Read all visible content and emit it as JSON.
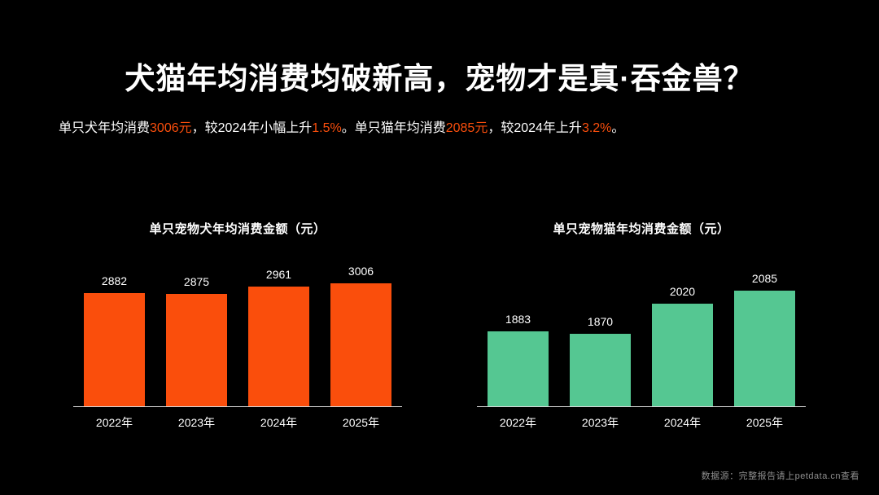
{
  "title": "犬猫年均消费均破新高，宠物才是真·吞金兽？",
  "subtitle": {
    "segments": [
      {
        "text": "单只犬年均消费",
        "highlight": false
      },
      {
        "text": "3006元",
        "highlight": true
      },
      {
        "text": "，较2024年小幅上升",
        "highlight": false
      },
      {
        "text": "1.5%",
        "highlight": true
      },
      {
        "text": "。单只猫年均消费",
        "highlight": false
      },
      {
        "text": "2085元",
        "highlight": true
      },
      {
        "text": "，较2024年上升",
        "highlight": false
      },
      {
        "text": "3.2%",
        "highlight": true
      },
      {
        "text": "。",
        "highlight": false
      }
    ]
  },
  "colors": {
    "background": "#000000",
    "text": "#ffffff",
    "highlight": "#fa4e0c",
    "dog_bar": "#fa4e0c",
    "cat_bar": "#55c792",
    "axis_line": "#d9d9d9",
    "source_text": "#8f8f8f"
  },
  "chart_data": [
    {
      "type": "bar",
      "title": "单只宠物犬年均消费金额（元）",
      "categories": [
        "2022年",
        "2023年",
        "2024年",
        "2025年"
      ],
      "values": [
        2882,
        2875,
        2961,
        3006
      ],
      "bar_color": "#fa4e0c",
      "xlabel": "",
      "ylabel": "",
      "ylim": [
        1440,
        3100
      ],
      "grid": false,
      "legend": "none",
      "value_labels": true
    },
    {
      "type": "bar",
      "title": "单只宠物猫年均消费金额（元）",
      "categories": [
        "2022年",
        "2023年",
        "2024年",
        "2025年"
      ],
      "values": [
        1883,
        1870,
        2020,
        2085
      ],
      "bar_color": "#55c792",
      "xlabel": "",
      "ylabel": "",
      "ylim": [
        1510,
        2160
      ],
      "grid": false,
      "legend": "none",
      "value_labels": true
    }
  ],
  "footer": {
    "source_note": "数据源：完整报告请上petdata.cn查看"
  }
}
